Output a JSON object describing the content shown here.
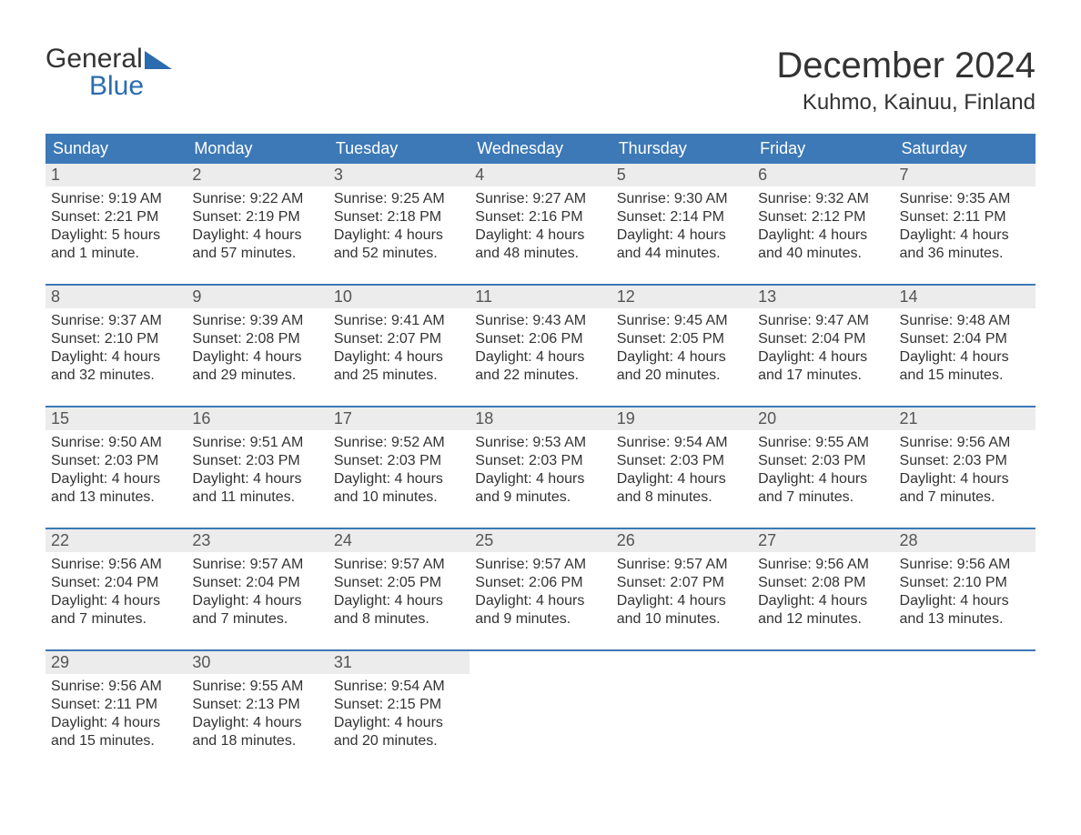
{
  "brand": {
    "top": "General",
    "bottom": "Blue",
    "accent_color": "#2b6cb0"
  },
  "title": "December 2024",
  "location": "Kuhmo, Kainuu, Finland",
  "colors": {
    "header_bg": "#3d79b7",
    "header_text": "#ffffff",
    "daynum_bg": "#ececec",
    "week_divider": "#3d79b7",
    "body_text": "#333333"
  },
  "typography": {
    "title_fontsize": 40,
    "location_fontsize": 24,
    "dayheader_fontsize": 18,
    "cell_fontsize": 16
  },
  "day_headers": [
    "Sunday",
    "Monday",
    "Tuesday",
    "Wednesday",
    "Thursday",
    "Friday",
    "Saturday"
  ],
  "weeks": [
    [
      {
        "n": "1",
        "sunrise": "Sunrise: 9:19 AM",
        "sunset": "Sunset: 2:21 PM",
        "d1": "Daylight: 5 hours",
        "d2": "and 1 minute."
      },
      {
        "n": "2",
        "sunrise": "Sunrise: 9:22 AM",
        "sunset": "Sunset: 2:19 PM",
        "d1": "Daylight: 4 hours",
        "d2": "and 57 minutes."
      },
      {
        "n": "3",
        "sunrise": "Sunrise: 9:25 AM",
        "sunset": "Sunset: 2:18 PM",
        "d1": "Daylight: 4 hours",
        "d2": "and 52 minutes."
      },
      {
        "n": "4",
        "sunrise": "Sunrise: 9:27 AM",
        "sunset": "Sunset: 2:16 PM",
        "d1": "Daylight: 4 hours",
        "d2": "and 48 minutes."
      },
      {
        "n": "5",
        "sunrise": "Sunrise: 9:30 AM",
        "sunset": "Sunset: 2:14 PM",
        "d1": "Daylight: 4 hours",
        "d2": "and 44 minutes."
      },
      {
        "n": "6",
        "sunrise": "Sunrise: 9:32 AM",
        "sunset": "Sunset: 2:12 PM",
        "d1": "Daylight: 4 hours",
        "d2": "and 40 minutes."
      },
      {
        "n": "7",
        "sunrise": "Sunrise: 9:35 AM",
        "sunset": "Sunset: 2:11 PM",
        "d1": "Daylight: 4 hours",
        "d2": "and 36 minutes."
      }
    ],
    [
      {
        "n": "8",
        "sunrise": "Sunrise: 9:37 AM",
        "sunset": "Sunset: 2:10 PM",
        "d1": "Daylight: 4 hours",
        "d2": "and 32 minutes."
      },
      {
        "n": "9",
        "sunrise": "Sunrise: 9:39 AM",
        "sunset": "Sunset: 2:08 PM",
        "d1": "Daylight: 4 hours",
        "d2": "and 29 minutes."
      },
      {
        "n": "10",
        "sunrise": "Sunrise: 9:41 AM",
        "sunset": "Sunset: 2:07 PM",
        "d1": "Daylight: 4 hours",
        "d2": "and 25 minutes."
      },
      {
        "n": "11",
        "sunrise": "Sunrise: 9:43 AM",
        "sunset": "Sunset: 2:06 PM",
        "d1": "Daylight: 4 hours",
        "d2": "and 22 minutes."
      },
      {
        "n": "12",
        "sunrise": "Sunrise: 9:45 AM",
        "sunset": "Sunset: 2:05 PM",
        "d1": "Daylight: 4 hours",
        "d2": "and 20 minutes."
      },
      {
        "n": "13",
        "sunrise": "Sunrise: 9:47 AM",
        "sunset": "Sunset: 2:04 PM",
        "d1": "Daylight: 4 hours",
        "d2": "and 17 minutes."
      },
      {
        "n": "14",
        "sunrise": "Sunrise: 9:48 AM",
        "sunset": "Sunset: 2:04 PM",
        "d1": "Daylight: 4 hours",
        "d2": "and 15 minutes."
      }
    ],
    [
      {
        "n": "15",
        "sunrise": "Sunrise: 9:50 AM",
        "sunset": "Sunset: 2:03 PM",
        "d1": "Daylight: 4 hours",
        "d2": "and 13 minutes."
      },
      {
        "n": "16",
        "sunrise": "Sunrise: 9:51 AM",
        "sunset": "Sunset: 2:03 PM",
        "d1": "Daylight: 4 hours",
        "d2": "and 11 minutes."
      },
      {
        "n": "17",
        "sunrise": "Sunrise: 9:52 AM",
        "sunset": "Sunset: 2:03 PM",
        "d1": "Daylight: 4 hours",
        "d2": "and 10 minutes."
      },
      {
        "n": "18",
        "sunrise": "Sunrise: 9:53 AM",
        "sunset": "Sunset: 2:03 PM",
        "d1": "Daylight: 4 hours",
        "d2": "and 9 minutes."
      },
      {
        "n": "19",
        "sunrise": "Sunrise: 9:54 AM",
        "sunset": "Sunset: 2:03 PM",
        "d1": "Daylight: 4 hours",
        "d2": "and 8 minutes."
      },
      {
        "n": "20",
        "sunrise": "Sunrise: 9:55 AM",
        "sunset": "Sunset: 2:03 PM",
        "d1": "Daylight: 4 hours",
        "d2": "and 7 minutes."
      },
      {
        "n": "21",
        "sunrise": "Sunrise: 9:56 AM",
        "sunset": "Sunset: 2:03 PM",
        "d1": "Daylight: 4 hours",
        "d2": "and 7 minutes."
      }
    ],
    [
      {
        "n": "22",
        "sunrise": "Sunrise: 9:56 AM",
        "sunset": "Sunset: 2:04 PM",
        "d1": "Daylight: 4 hours",
        "d2": "and 7 minutes."
      },
      {
        "n": "23",
        "sunrise": "Sunrise: 9:57 AM",
        "sunset": "Sunset: 2:04 PM",
        "d1": "Daylight: 4 hours",
        "d2": "and 7 minutes."
      },
      {
        "n": "24",
        "sunrise": "Sunrise: 9:57 AM",
        "sunset": "Sunset: 2:05 PM",
        "d1": "Daylight: 4 hours",
        "d2": "and 8 minutes."
      },
      {
        "n": "25",
        "sunrise": "Sunrise: 9:57 AM",
        "sunset": "Sunset: 2:06 PM",
        "d1": "Daylight: 4 hours",
        "d2": "and 9 minutes."
      },
      {
        "n": "26",
        "sunrise": "Sunrise: 9:57 AM",
        "sunset": "Sunset: 2:07 PM",
        "d1": "Daylight: 4 hours",
        "d2": "and 10 minutes."
      },
      {
        "n": "27",
        "sunrise": "Sunrise: 9:56 AM",
        "sunset": "Sunset: 2:08 PM",
        "d1": "Daylight: 4 hours",
        "d2": "and 12 minutes."
      },
      {
        "n": "28",
        "sunrise": "Sunrise: 9:56 AM",
        "sunset": "Sunset: 2:10 PM",
        "d1": "Daylight: 4 hours",
        "d2": "and 13 minutes."
      }
    ],
    [
      {
        "n": "29",
        "sunrise": "Sunrise: 9:56 AM",
        "sunset": "Sunset: 2:11 PM",
        "d1": "Daylight: 4 hours",
        "d2": "and 15 minutes."
      },
      {
        "n": "30",
        "sunrise": "Sunrise: 9:55 AM",
        "sunset": "Sunset: 2:13 PM",
        "d1": "Daylight: 4 hours",
        "d2": "and 18 minutes."
      },
      {
        "n": "31",
        "sunrise": "Sunrise: 9:54 AM",
        "sunset": "Sunset: 2:15 PM",
        "d1": "Daylight: 4 hours",
        "d2": "and 20 minutes."
      },
      null,
      null,
      null,
      null
    ]
  ]
}
